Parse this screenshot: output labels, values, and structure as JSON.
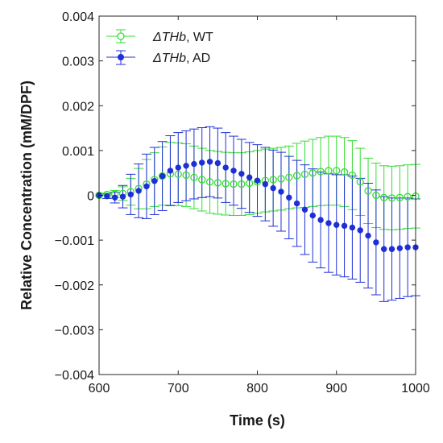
{
  "chart_data": {
    "type": "line",
    "xlabel": "Time (s)",
    "ylabel": "Relative Concentration (mM/DPF)",
    "xlim": [
      600,
      1000
    ],
    "ylim": [
      -0.004,
      0.004
    ],
    "x_ticks": [
      "600",
      "700",
      "800",
      "900",
      "1000"
    ],
    "y_ticks": [
      "0.004",
      "0.003",
      "0.002",
      "0.001",
      "0",
      "−0.001",
      "−0.002",
      "−0.003",
      "−0.004"
    ],
    "grid": false,
    "legend_position": "top-left",
    "x": [
      600,
      610,
      620,
      630,
      640,
      650,
      660,
      670,
      680,
      690,
      700,
      710,
      720,
      730,
      740,
      750,
      760,
      770,
      780,
      790,
      800,
      810,
      820,
      830,
      840,
      850,
      860,
      870,
      880,
      890,
      900,
      910,
      920,
      930,
      940,
      950,
      960,
      970,
      980,
      990,
      1000
    ],
    "series": [
      {
        "legend_symbol": "ΔTHb",
        "legend_suffix": ", WT",
        "marker": "open-circle",
        "color": "#33dd33",
        "values": [
          0,
          2e-05,
          3e-05,
          4e-05,
          8e-05,
          0.00015,
          0.00025,
          0.00035,
          0.00043,
          0.00048,
          0.00047,
          0.00045,
          0.0004,
          0.00035,
          0.0003,
          0.00028,
          0.00026,
          0.00025,
          0.00025,
          0.00027,
          0.0003,
          0.00033,
          0.00035,
          0.00037,
          0.0004,
          0.00044,
          0.00047,
          0.0005,
          0.00053,
          0.00055,
          0.00055,
          0.00052,
          0.00045,
          0.0003,
          0.0001,
          0.0,
          -5e-05,
          -6e-05,
          -5e-05,
          -3e-05,
          -2e-05
        ],
        "errors": [
          0,
          3e-05,
          8e-05,
          0.00015,
          0.0003,
          0.00045,
          0.00055,
          0.0006,
          0.00065,
          0.0007,
          0.0007,
          0.0007,
          0.0007,
          0.0007,
          0.0007,
          0.0007,
          0.0007,
          0.0007,
          0.0007,
          0.0007,
          0.0007,
          0.0007,
          0.0007,
          0.0007,
          0.0007,
          0.00072,
          0.00074,
          0.00075,
          0.00076,
          0.00077,
          0.00077,
          0.00077,
          0.00077,
          0.00075,
          0.00073,
          0.00072,
          0.00071,
          0.00071,
          0.00071,
          0.00071,
          0.00071
        ]
      },
      {
        "legend_symbol": "ΔTHb",
        "legend_suffix": ", AD",
        "marker": "filled-circle",
        "color": "#1f2fd6",
        "values": [
          0,
          -2e-05,
          -5e-05,
          -3e-05,
          2e-05,
          0.0001,
          0.0002,
          0.00032,
          0.00043,
          0.00055,
          0.00062,
          0.00066,
          0.0007,
          0.00073,
          0.00075,
          0.00072,
          0.00062,
          0.00055,
          0.00048,
          0.0004,
          0.00033,
          0.00025,
          0.00016,
          8e-05,
          -5e-05,
          -0.00018,
          -0.00032,
          -0.00045,
          -0.00055,
          -0.00062,
          -0.00066,
          -0.00068,
          -0.00072,
          -0.00078,
          -0.0009,
          -0.00105,
          -0.0012,
          -0.0012,
          -0.00118,
          -0.00116,
          -0.00116
        ],
        "errors": [
          0,
          5e-05,
          0.00012,
          0.00025,
          0.00045,
          0.0006,
          0.00072,
          0.00075,
          0.00077,
          0.00078,
          0.00078,
          0.00078,
          0.00078,
          0.00078,
          0.00078,
          0.00078,
          0.00078,
          0.00077,
          0.00077,
          0.00078,
          0.0008,
          0.00082,
          0.00085,
          0.00088,
          0.00092,
          0.00096,
          0.001,
          0.00104,
          0.00107,
          0.0011,
          0.00112,
          0.00114,
          0.00115,
          0.00116,
          0.00117,
          0.00117,
          0.00117,
          0.00114,
          0.00112,
          0.0011,
          0.00108
        ]
      }
    ]
  }
}
